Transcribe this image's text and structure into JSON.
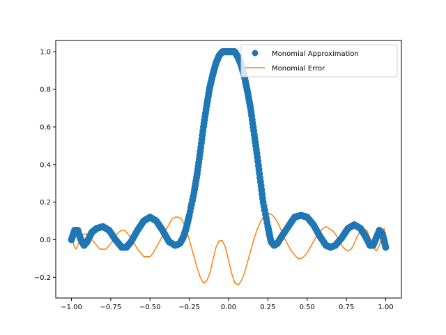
{
  "chart_data": {
    "type": "line",
    "title": "",
    "xlabel": "",
    "ylabel": "",
    "xlim": [
      -1.1,
      1.1
    ],
    "ylim": [
      -0.31,
      1.06
    ],
    "xticks": [
      -1.0,
      -0.75,
      -0.5,
      -0.25,
      0.0,
      0.25,
      0.5,
      0.75,
      1.0
    ],
    "xtick_labels": [
      "−1.00",
      "−0.75",
      "−0.50",
      "−0.25",
      "0.00",
      "0.25",
      "0.50",
      "0.75",
      "1.00"
    ],
    "yticks": [
      -0.2,
      0.0,
      0.2,
      0.4,
      0.6,
      0.8,
      1.0
    ],
    "ytick_labels": [
      "−0.2",
      "0.0",
      "0.2",
      "0.4",
      "0.6",
      "0.8",
      "1.0"
    ],
    "grid": false,
    "legend_position": "top-right",
    "series": [
      {
        "name": "Monomial Approximation",
        "style": "markers",
        "color": "#1f77b4",
        "x": [
          -1.0,
          -0.98,
          -0.96,
          -0.94,
          -0.92,
          -0.9,
          -0.87,
          -0.84,
          -0.8,
          -0.76,
          -0.72,
          -0.68,
          -0.65,
          -0.62,
          -0.58,
          -0.54,
          -0.5,
          -0.46,
          -0.42,
          -0.38,
          -0.34,
          -0.31,
          -0.29,
          -0.27,
          -0.25,
          -0.22,
          -0.2,
          -0.18,
          -0.16,
          -0.14,
          -0.12,
          -0.1,
          -0.08,
          -0.06,
          -0.04,
          -0.02,
          0.0,
          0.02,
          0.04,
          0.06,
          0.08,
          0.1,
          0.12,
          0.14,
          0.16,
          0.18,
          0.2,
          0.22,
          0.25,
          0.27,
          0.29,
          0.31,
          0.34,
          0.38,
          0.42,
          0.46,
          0.5,
          0.54,
          0.58,
          0.62,
          0.65,
          0.68,
          0.72,
          0.76,
          0.8,
          0.84,
          0.87,
          0.9,
          0.92,
          0.94,
          0.96,
          0.98,
          1.0
        ],
        "y": [
          0.0,
          0.05,
          0.05,
          0.0,
          -0.03,
          -0.01,
          0.04,
          0.06,
          0.07,
          0.05,
          0.0,
          -0.04,
          -0.04,
          -0.01,
          0.05,
          0.1,
          0.12,
          0.1,
          0.05,
          -0.01,
          -0.03,
          -0.02,
          0.01,
          0.06,
          0.13,
          0.25,
          0.35,
          0.47,
          0.6,
          0.71,
          0.81,
          0.88,
          0.94,
          0.98,
          1.0,
          1.0,
          1.0,
          1.0,
          1.0,
          0.97,
          0.93,
          0.87,
          0.79,
          0.7,
          0.58,
          0.46,
          0.33,
          0.2,
          0.07,
          -0.01,
          -0.03,
          -0.02,
          0.02,
          0.07,
          0.12,
          0.13,
          0.12,
          0.08,
          0.02,
          -0.03,
          -0.04,
          -0.03,
          0.01,
          0.06,
          0.08,
          0.06,
          0.02,
          -0.03,
          -0.03,
          0.01,
          0.05,
          0.03,
          -0.04
        ]
      },
      {
        "name": "Monomial Error",
        "style": "line",
        "color": "#ff7f0e",
        "x": [
          -1.0,
          -0.985,
          -0.97,
          -0.955,
          -0.94,
          -0.92,
          -0.9,
          -0.88,
          -0.86,
          -0.84,
          -0.82,
          -0.8,
          -0.78,
          -0.76,
          -0.74,
          -0.72,
          -0.7,
          -0.68,
          -0.66,
          -0.64,
          -0.62,
          -0.6,
          -0.58,
          -0.56,
          -0.54,
          -0.52,
          -0.5,
          -0.48,
          -0.46,
          -0.44,
          -0.42,
          -0.4,
          -0.38,
          -0.36,
          -0.34,
          -0.32,
          -0.3,
          -0.28,
          -0.26,
          -0.24,
          -0.22,
          -0.2,
          -0.18,
          -0.16,
          -0.14,
          -0.12,
          -0.1,
          -0.08,
          -0.06,
          -0.04,
          -0.02,
          0.0,
          0.02,
          0.04,
          0.06,
          0.08,
          0.1,
          0.12,
          0.14,
          0.16,
          0.18,
          0.2,
          0.22,
          0.24,
          0.26,
          0.28,
          0.3,
          0.32,
          0.34,
          0.36,
          0.38,
          0.4,
          0.42,
          0.44,
          0.46,
          0.48,
          0.5,
          0.52,
          0.54,
          0.56,
          0.58,
          0.6,
          0.62,
          0.64,
          0.66,
          0.68,
          0.7,
          0.72,
          0.74,
          0.76,
          0.78,
          0.8,
          0.82,
          0.84,
          0.86,
          0.88,
          0.9,
          0.92,
          0.94,
          0.96,
          0.975,
          0.99,
          1.0
        ],
        "y": [
          0.05,
          -0.03,
          -0.05,
          -0.02,
          0.02,
          0.03,
          0.03,
          0.01,
          -0.01,
          -0.03,
          -0.05,
          -0.05,
          -0.05,
          -0.03,
          -0.01,
          0.02,
          0.04,
          0.05,
          0.05,
          0.03,
          0.01,
          -0.02,
          -0.05,
          -0.07,
          -0.09,
          -0.09,
          -0.09,
          -0.07,
          -0.04,
          -0.01,
          0.02,
          0.05,
          0.08,
          0.11,
          0.12,
          0.12,
          0.11,
          0.08,
          0.03,
          -0.03,
          -0.09,
          -0.15,
          -0.2,
          -0.23,
          -0.22,
          -0.18,
          -0.11,
          -0.04,
          -0.005,
          -0.005,
          -0.04,
          -0.11,
          -0.18,
          -0.23,
          -0.24,
          -0.22,
          -0.18,
          -0.12,
          -0.06,
          0.0,
          0.05,
          0.09,
          0.12,
          0.13,
          0.14,
          0.13,
          0.11,
          0.08,
          0.04,
          0.0,
          -0.03,
          -0.06,
          -0.08,
          -0.1,
          -0.1,
          -0.09,
          -0.07,
          -0.04,
          -0.01,
          0.02,
          0.04,
          0.06,
          0.07,
          0.06,
          0.05,
          0.03,
          0.0,
          -0.03,
          -0.05,
          -0.06,
          -0.05,
          -0.02,
          0.02,
          0.05,
          0.06,
          0.05,
          0.01,
          -0.04,
          -0.06,
          -0.03,
          0.02,
          0.06,
          -0.01
        ]
      }
    ]
  }
}
